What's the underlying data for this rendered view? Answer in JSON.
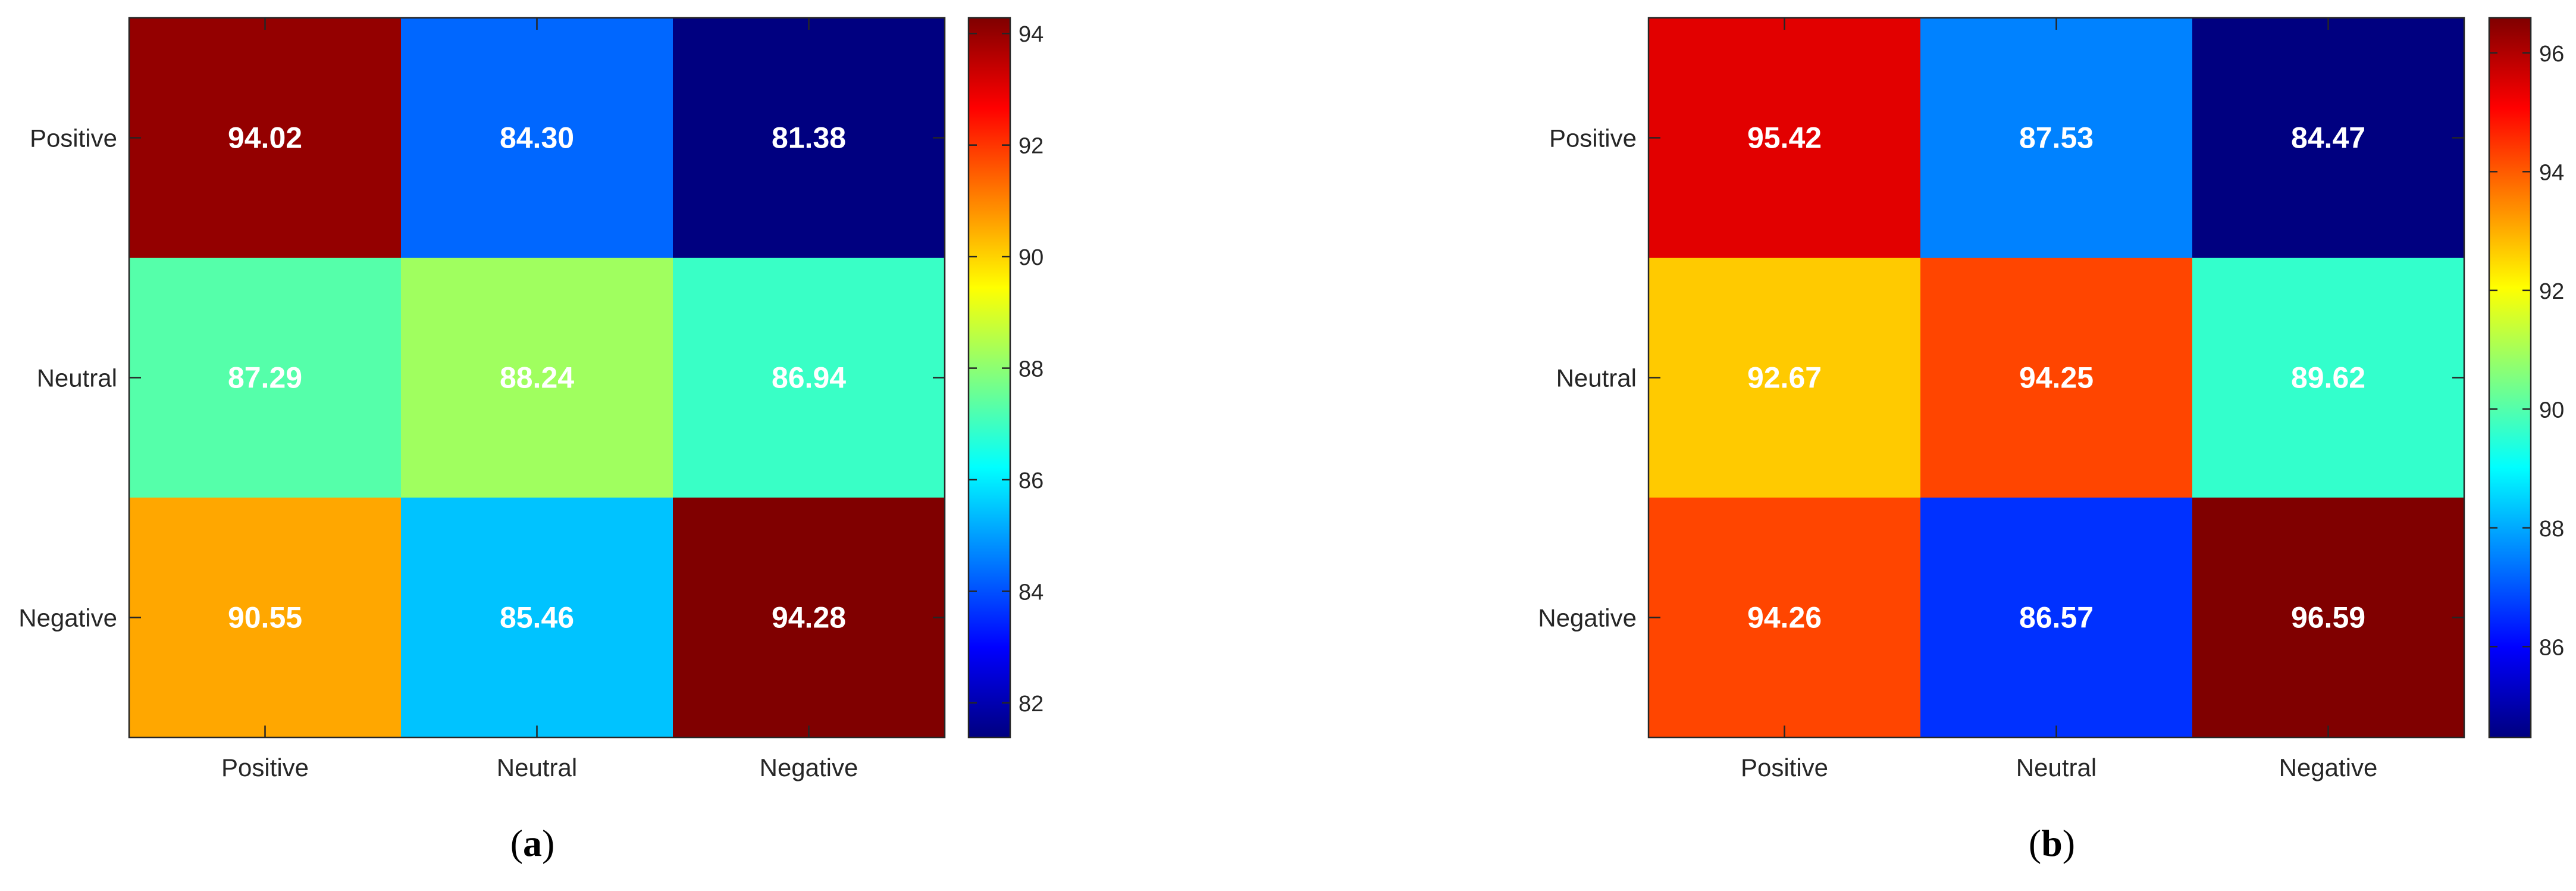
{
  "chart_data": [
    {
      "type": "heatmap",
      "caption_label": "a",
      "x_categories": [
        "Positive",
        "Neutral",
        "Negative"
      ],
      "y_categories": [
        "Positive",
        "Neutral",
        "Negative"
      ],
      "values": [
        [
          94.02,
          84.3,
          81.38
        ],
        [
          87.29,
          88.24,
          86.94
        ],
        [
          90.55,
          85.46,
          94.28
        ]
      ],
      "value_labels": [
        [
          "94.02",
          "84.30",
          "81.38"
        ],
        [
          "87.29",
          "88.24",
          "86.94"
        ],
        [
          "90.55",
          "85.46",
          "94.28"
        ]
      ],
      "colormap": "jet",
      "color_range": [
        81.38,
        94.28
      ],
      "colorbar_ticks": [
        82,
        84,
        86,
        88,
        90,
        92,
        94
      ],
      "value_label_color": "#ffffff"
    },
    {
      "type": "heatmap",
      "caption_label": "b",
      "x_categories": [
        "Positive",
        "Neutral",
        "Negative"
      ],
      "y_categories": [
        "Positive",
        "Neutral",
        "Negative"
      ],
      "values": [
        [
          95.42,
          87.53,
          84.47
        ],
        [
          92.67,
          94.25,
          89.62
        ],
        [
          94.26,
          86.57,
          96.59
        ]
      ],
      "value_labels": [
        [
          "95.42",
          "87.53",
          "84.47"
        ],
        [
          "92.67",
          "94.25",
          "89.62"
        ],
        [
          "94.26",
          "86.57",
          "96.59"
        ]
      ],
      "colormap": "jet",
      "color_range": [
        84.47,
        96.59
      ],
      "colorbar_ticks": [
        86,
        88,
        90,
        92,
        94,
        96
      ],
      "value_label_color": "#ffffff"
    }
  ]
}
